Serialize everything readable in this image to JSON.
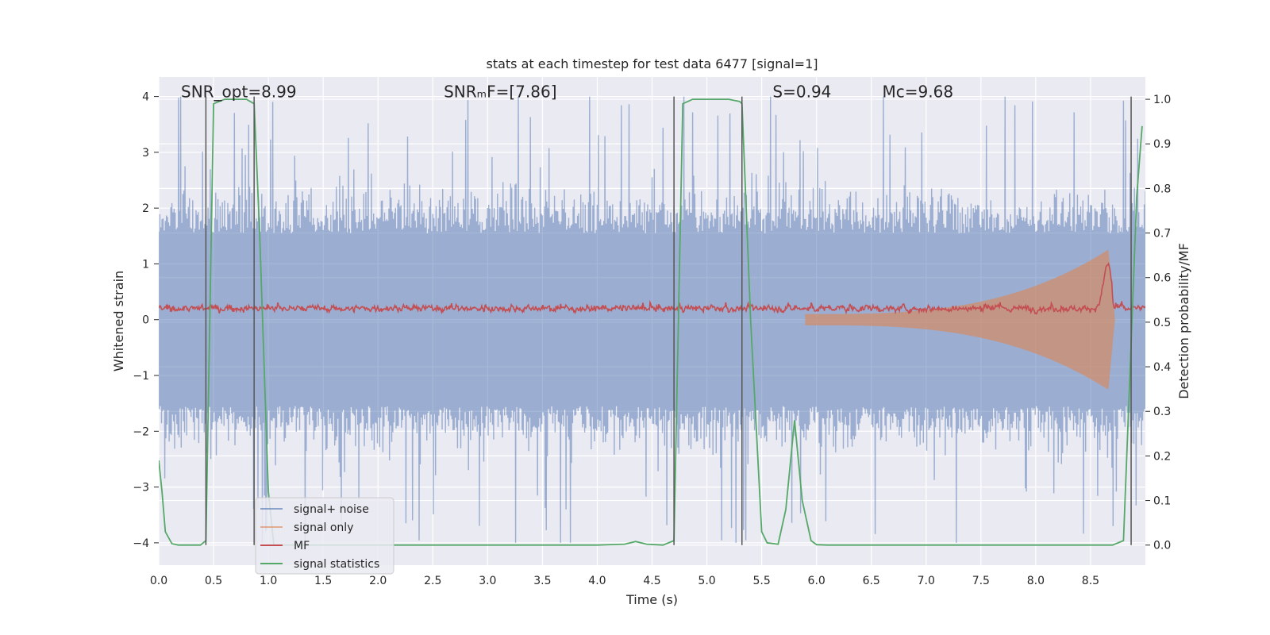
{
  "chart_data": {
    "type": "line",
    "title": "stats at each timestep for test data 6477 [signal=1]",
    "xlabel": "Time (s)",
    "ylabel_left": "Whitened strain",
    "ylabel_right": "Detection probability/MF",
    "xlim": [
      0.0,
      9.0
    ],
    "ylim_left": [
      -4.4,
      4.35
    ],
    "ylim_right": [
      -0.045,
      1.05
    ],
    "xticks": [
      "0.0",
      "0.5",
      "1.0",
      "1.5",
      "2.0",
      "2.5",
      "3.0",
      "3.5",
      "4.0",
      "4.5",
      "5.0",
      "5.5",
      "6.0",
      "6.5",
      "7.0",
      "7.5",
      "8.0",
      "8.5"
    ],
    "xtick_values": [
      0.0,
      0.5,
      1.0,
      1.5,
      2.0,
      2.5,
      3.0,
      3.5,
      4.0,
      4.5,
      5.0,
      5.5,
      6.0,
      6.5,
      7.0,
      7.5,
      8.0,
      8.5
    ],
    "yticks_left": [
      "−4",
      "−3",
      "−2",
      "−1",
      "0",
      "1",
      "2",
      "3",
      "4"
    ],
    "ytick_values_left": [
      -4,
      -3,
      -2,
      -1,
      0,
      1,
      2,
      3,
      4
    ],
    "yticks_right": [
      "0.0",
      "0.1",
      "0.2",
      "0.3",
      "0.4",
      "0.5",
      "0.6",
      "0.7",
      "0.8",
      "0.9",
      "1.0"
    ],
    "ytick_values_right": [
      0.0,
      0.1,
      0.2,
      0.3,
      0.4,
      0.5,
      0.6,
      0.7,
      0.8,
      0.9,
      1.0
    ],
    "grid": true,
    "legend_position": "bottom-left",
    "annotations": [
      {
        "text": "SNR_opt=8.99",
        "x": 0.2,
        "y_axis_value": 4.0
      },
      {
        "text": "SNRₘF=[7.86]",
        "x": 2.6,
        "y_axis_value": 4.0
      },
      {
        "text": "S=0.94",
        "x": 5.6,
        "y_axis_value": 4.0
      },
      {
        "text": "Mc=9.68",
        "x": 6.6,
        "y_axis_value": 4.0
      }
    ],
    "vertical_lines_x": [
      0.43,
      0.87,
      4.7,
      5.32,
      8.87
    ],
    "series": [
      {
        "name": "signal+ noise",
        "axis": "left",
        "color": "#4c72b0",
        "kind": "noise band, amplitude approx ±2 with peaks up to ±4"
      },
      {
        "name": "signal only",
        "axis": "left",
        "color": "#dd8452",
        "kind": "chirp growing from 0 at t≈6.0 to amplitude ≈1.3 at t≈8.65"
      },
      {
        "name": "MF",
        "axis": "left",
        "color": "#c44e52",
        "kind": "trace between 0.0 and 0.5, spike to 1.0 at t≈8.65"
      },
      {
        "name": "signal statistics",
        "axis": "right",
        "color": "#55a868",
        "x": [
          0.0,
          0.03,
          0.06,
          0.12,
          0.18,
          0.3,
          0.38,
          0.43,
          0.5,
          0.6,
          0.7,
          0.8,
          0.87,
          0.92,
          1.0,
          1.05,
          1.2,
          2.0,
          3.0,
          4.0,
          4.25,
          4.35,
          4.45,
          4.6,
          4.7,
          4.78,
          4.87,
          5.0,
          5.2,
          5.3,
          5.32,
          5.4,
          5.5,
          5.55,
          5.65,
          5.72,
          5.8,
          5.87,
          5.95,
          6.0,
          6.1,
          6.5,
          7.0,
          8.0,
          8.7,
          8.8,
          8.87,
          8.92,
          8.97
        ],
        "values": [
          0.19,
          0.12,
          0.03,
          0.003,
          0.0,
          0.0,
          0.0,
          0.01,
          0.99,
          1.0,
          1.0,
          1.0,
          0.99,
          0.7,
          0.12,
          0.0,
          0.0,
          0.0,
          0.0,
          0.0,
          0.002,
          0.008,
          0.002,
          0.0,
          0.01,
          0.99,
          1.0,
          1.0,
          1.0,
          0.995,
          0.99,
          0.5,
          0.03,
          0.005,
          0.002,
          0.08,
          0.28,
          0.1,
          0.01,
          0.001,
          0.0,
          0.0,
          0.0,
          0.0,
          0.0,
          0.01,
          0.45,
          0.78,
          0.94
        ]
      }
    ],
    "legend": [
      {
        "label": "signal+ noise",
        "color": "#4c72b0"
      },
      {
        "label": "signal only",
        "color": "#dd8452"
      },
      {
        "label": "MF",
        "color": "#c44e52"
      },
      {
        "label": "signal statistics",
        "color": "#55a868"
      }
    ]
  }
}
